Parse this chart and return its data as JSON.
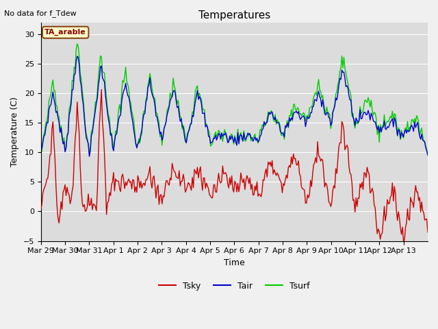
{
  "title": "Temperatures",
  "xlabel": "Time",
  "ylabel": "Temperature (C)",
  "ylim": [
    -5,
    32
  ],
  "note": "No data for f_Tdew",
  "annotation": "TA_arable",
  "legend": [
    "Tsky",
    "Tair",
    "Tsurf"
  ],
  "colors": {
    "Tsky": "#cc0000",
    "Tair": "#0000cc",
    "Tsurf": "#00cc00"
  },
  "plot_bg": "#dcdcdc",
  "fig_bg": "#f0f0f0",
  "grid_color": "#ffffff",
  "linewidth": 1.0,
  "title_fontsize": 11,
  "axis_fontsize": 9,
  "tick_fontsize": 8,
  "x_tick_labels": [
    "Mar 29",
    "Mar 30",
    "Mar 31",
    "Apr 1",
    "Apr 2",
    "Apr 3",
    "Apr 4",
    "Apr 5",
    "Apr 6",
    "Apr 7",
    "Apr 8",
    "Apr 9",
    "Apr 10",
    "Apr 11",
    "Apr 12",
    "Apr 13"
  ]
}
